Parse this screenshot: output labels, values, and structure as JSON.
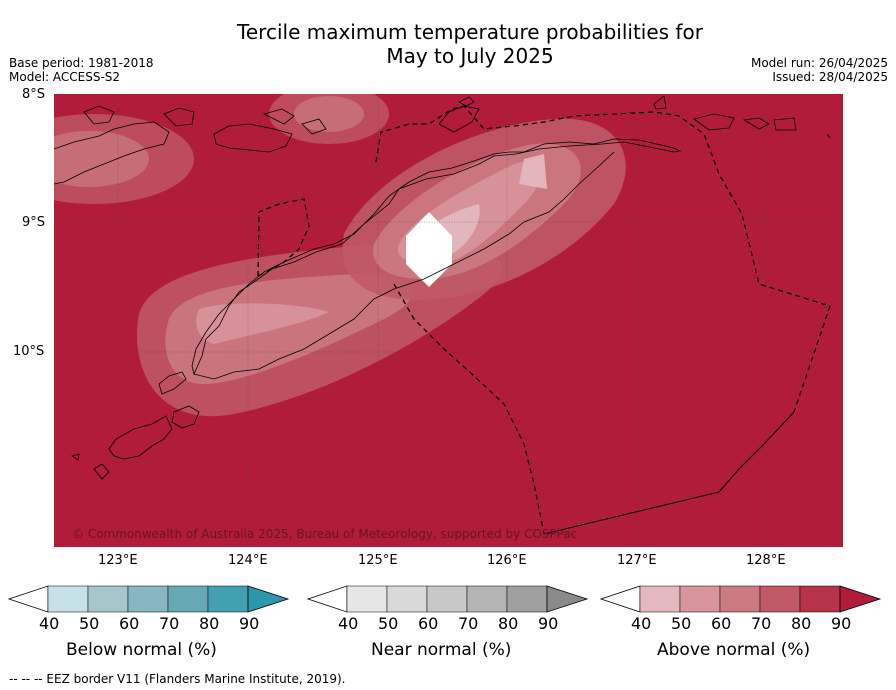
{
  "header": {
    "title_line1": "Tercile maximum temperature probabilities for",
    "title_line2": "May to July 2025",
    "base_period": "Base period: 1981-2018",
    "model": "Model: ACCESS-S2",
    "model_run": "Model run: 26/04/2025",
    "issued": "Issued: 28/04/2025"
  },
  "map": {
    "lat_labels": [
      "8°S",
      "9°S",
      "10°S"
    ],
    "lon_labels": [
      "123°E",
      "124°E",
      "125°E",
      "126°E",
      "127°E",
      "128°E"
    ],
    "copyright": "© Commonwealth of Australia 2025, Bureau of Meteorology, supported by COSPPac"
  },
  "colorbars": [
    {
      "name": "below",
      "label": "Below normal (%)",
      "ticks": [
        "40",
        "50",
        "60",
        "70",
        "80",
        "90"
      ],
      "colors": [
        "#ffffff",
        "#c6e1e7",
        "#a6c6cc",
        "#88b7c1",
        "#67a8b5",
        "#43a0b2",
        "#2e96ab"
      ]
    },
    {
      "name": "near",
      "label": "Near normal (%)",
      "ticks": [
        "40",
        "50",
        "60",
        "70",
        "80",
        "90"
      ],
      "colors": [
        "#ffffff",
        "#e6e6e6",
        "#d9d9d9",
        "#c8c8c8",
        "#b4b4b4",
        "#a0a0a0",
        "#8a8a8a"
      ]
    },
    {
      "name": "above",
      "label": "Above normal (%)",
      "ticks": [
        "40",
        "50",
        "60",
        "70",
        "80",
        "90"
      ],
      "colors": [
        "#ffffff",
        "#e3b8be",
        "#d8959c",
        "#cc7a82",
        "#c05a66",
        "#b73349",
        "#b01c3a"
      ]
    }
  ],
  "footnote": "--  --  -- EEZ border V11 (Flanders Marine Institute, 2019)."
}
